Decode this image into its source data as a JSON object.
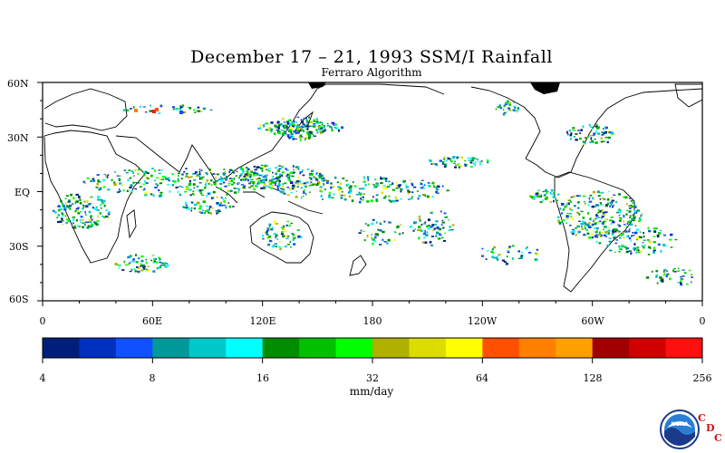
{
  "title": "December 17 – 21, 1993 SSM/I Rainfall",
  "subtitle": "Ferraro Algorithm",
  "lat_labels": [
    "60N",
    "30N",
    "EQ",
    "30S",
    "60S"
  ],
  "lon_labels": [
    "0",
    "60E",
    "120E",
    "180",
    "120W",
    "60W",
    "0"
  ],
  "colorbar": {
    "colors": [
      "#001f7a",
      "#0030c0",
      "#1050ff",
      "#009a9a",
      "#00c8c8",
      "#00ffff",
      "#008c00",
      "#00c000",
      "#00ff00",
      "#b0b000",
      "#dcdc00",
      "#ffff00",
      "#ff5000",
      "#ff8000",
      "#ffa000",
      "#a00000",
      "#d00000",
      "#ff1010"
    ],
    "tick_labels": [
      "4",
      "8",
      "16",
      "32",
      "64",
      "128",
      "256"
    ],
    "units": "mm/day"
  },
  "logo": {
    "noaa_text": "NOAA",
    "cdc_letters": [
      "C",
      "D",
      "C"
    ]
  }
}
